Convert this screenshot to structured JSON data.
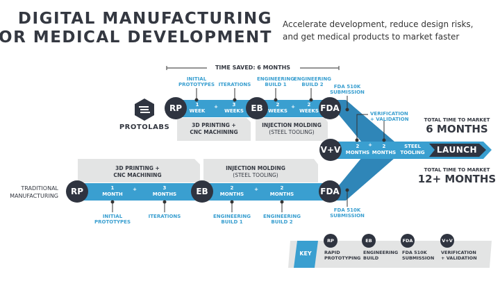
{
  "header": {
    "title_line1": "DIGITAL MANUFACTURING",
    "title_line2": "FOR MEDICAL DEVELOPMENT",
    "subtitle_line1": "Accelerate development, reduce design risks,",
    "subtitle_line2": "and get medical products to market faster"
  },
  "time_saved": "TIME SAVED: 6 MONTHS",
  "brand": {
    "name": "PROTOLABS"
  },
  "colors": {
    "blue": "#3a9fd0",
    "dark": "#2f3440",
    "gray": "#e3e4e4"
  },
  "protolabs_track": {
    "milestones": [
      "RP",
      "EB",
      "FDA"
    ],
    "steps": [
      {
        "n": "1",
        "unit": "WEEK"
      },
      {
        "n": "3",
        "unit": "WEEKS"
      },
      {
        "n": "2",
        "unit": "WEEKS"
      },
      {
        "n": "2",
        "unit": "WEEKS"
      }
    ],
    "labels": [
      [
        "INITIAL",
        "PROTOTYPES"
      ],
      [
        "ITERATIONS"
      ],
      [
        "ENGINEERING",
        "BUILD 1"
      ],
      [
        "ENGINEERING",
        "BUILD 2"
      ],
      [
        "FDA 510K",
        "SUBMISSION"
      ]
    ],
    "phase1": [
      "3D PRINTING +",
      "CNC MACHINING"
    ],
    "phase2": [
      "INJECTION MOLDING",
      "(STEEL TOOLING)"
    ],
    "plus": "+"
  },
  "shared_track": {
    "milestone": "V+V",
    "steps": [
      {
        "n": "2",
        "unit": "MONTHS"
      },
      {
        "n": "2",
        "unit": "MONTHS"
      }
    ],
    "steel": [
      "STEEL",
      "TOOLING"
    ],
    "label": [
      "VERIFICATION",
      "+ VALIDATION"
    ],
    "launch": "LAUNCH"
  },
  "totals": {
    "fast_label": "TOTAL TIME TO MARKET",
    "fast_value": "6 MONTHS",
    "slow_label": "TOTAL TIME TO MARKET",
    "slow_value": "12+ MONTHS"
  },
  "traditional_track": {
    "name": [
      "TRADITIONAL",
      "MANUFACTURING"
    ],
    "milestones": [
      "RP",
      "EB",
      "FDA"
    ],
    "steps": [
      {
        "n": "1",
        "unit": "MONTH"
      },
      {
        "n": "3",
        "unit": "MONTHS"
      },
      {
        "n": "2",
        "unit": "MONTHS"
      },
      {
        "n": "2",
        "unit": "MONTHS"
      }
    ],
    "labels": [
      [
        "INITIAL",
        "PROTOTYPES"
      ],
      [
        "ITERATIONS"
      ],
      [
        "ENGINEERING",
        "BUILD 1"
      ],
      [
        "ENGINEERING",
        "BUILD 2"
      ],
      [
        "FDA 510K",
        "SUBMISSION"
      ]
    ],
    "phase1": [
      "3D PRINTING +",
      "CNC MACHINING"
    ],
    "phase2": [
      "INJECTION MOLDING",
      "(STEEL TOOLING)"
    ]
  },
  "key": {
    "title": "KEY",
    "items": [
      {
        "abbr": "RP",
        "text": [
          "RAPID",
          "PROTOTYPING"
        ]
      },
      {
        "abbr": "EB",
        "text": [
          "ENGINEERING",
          "BUILD"
        ]
      },
      {
        "abbr": "FDA",
        "text": [
          "FDA 510K",
          "SUBMISSION"
        ]
      },
      {
        "abbr": "V+V",
        "text": [
          "VERIFICATION",
          "+ VALIDATION"
        ]
      }
    ]
  }
}
